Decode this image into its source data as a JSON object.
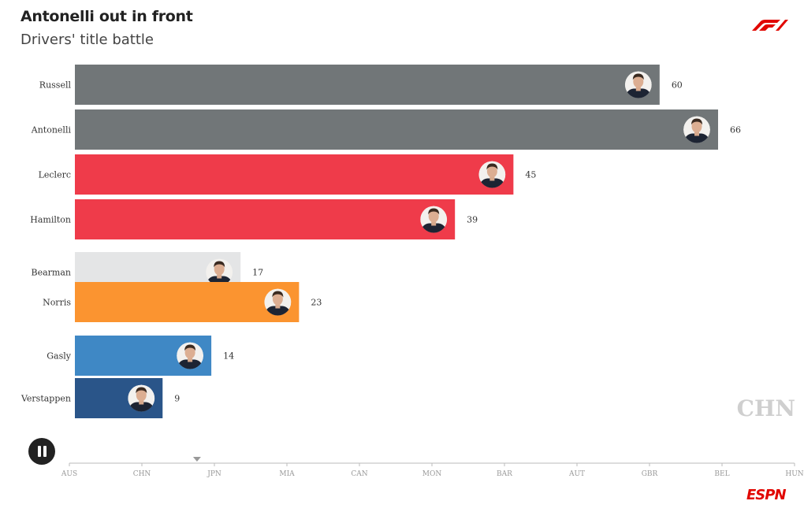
{
  "header": {
    "title": "Antonelli out in front",
    "subtitle": "Drivers' title battle"
  },
  "colors": {
    "mercedes": "#717678",
    "ferrari": "#ef3b4a",
    "haas": "#e4e5e6",
    "mclaren": "#fb9430",
    "alpine": "#3f88c5",
    "red_bull": "#2a5589",
    "accent_red": "#e10600"
  },
  "icons": {
    "play_control": "pause-icon",
    "brand_top": "f1-logo",
    "brand_bottom": "espn-logo",
    "timeline_marker": "triangle-down-icon"
  },
  "timeline": {
    "current_round": "CHN",
    "position_between": [
      "CHN",
      "JPN"
    ],
    "progress_fraction": 0.176
  },
  "chart_data": {
    "type": "bar",
    "title": "Antonelli out in front",
    "subtitle": "Drivers' title battle",
    "orientation": "horizontal",
    "categories": [
      "Russell",
      "Antonelli",
      "Leclerc",
      "Hamilton",
      "Bearman",
      "Norris",
      "Gasly",
      "Verstappen"
    ],
    "values": [
      60,
      66,
      45,
      39,
      17,
      23,
      14,
      9
    ],
    "bar_colors": [
      "#717678",
      "#717678",
      "#ef3b4a",
      "#ef3b4a",
      "#e4e5e6",
      "#fb9430",
      "#3f88c5",
      "#2a5589"
    ],
    "xlim": [
      0,
      66
    ],
    "grid": false,
    "timeline_ticks": [
      "AUS",
      "CHN",
      "JPN",
      "MIA",
      "CAN",
      "MON",
      "BAR",
      "AUT",
      "GBR",
      "BEL",
      "HUN"
    ]
  }
}
